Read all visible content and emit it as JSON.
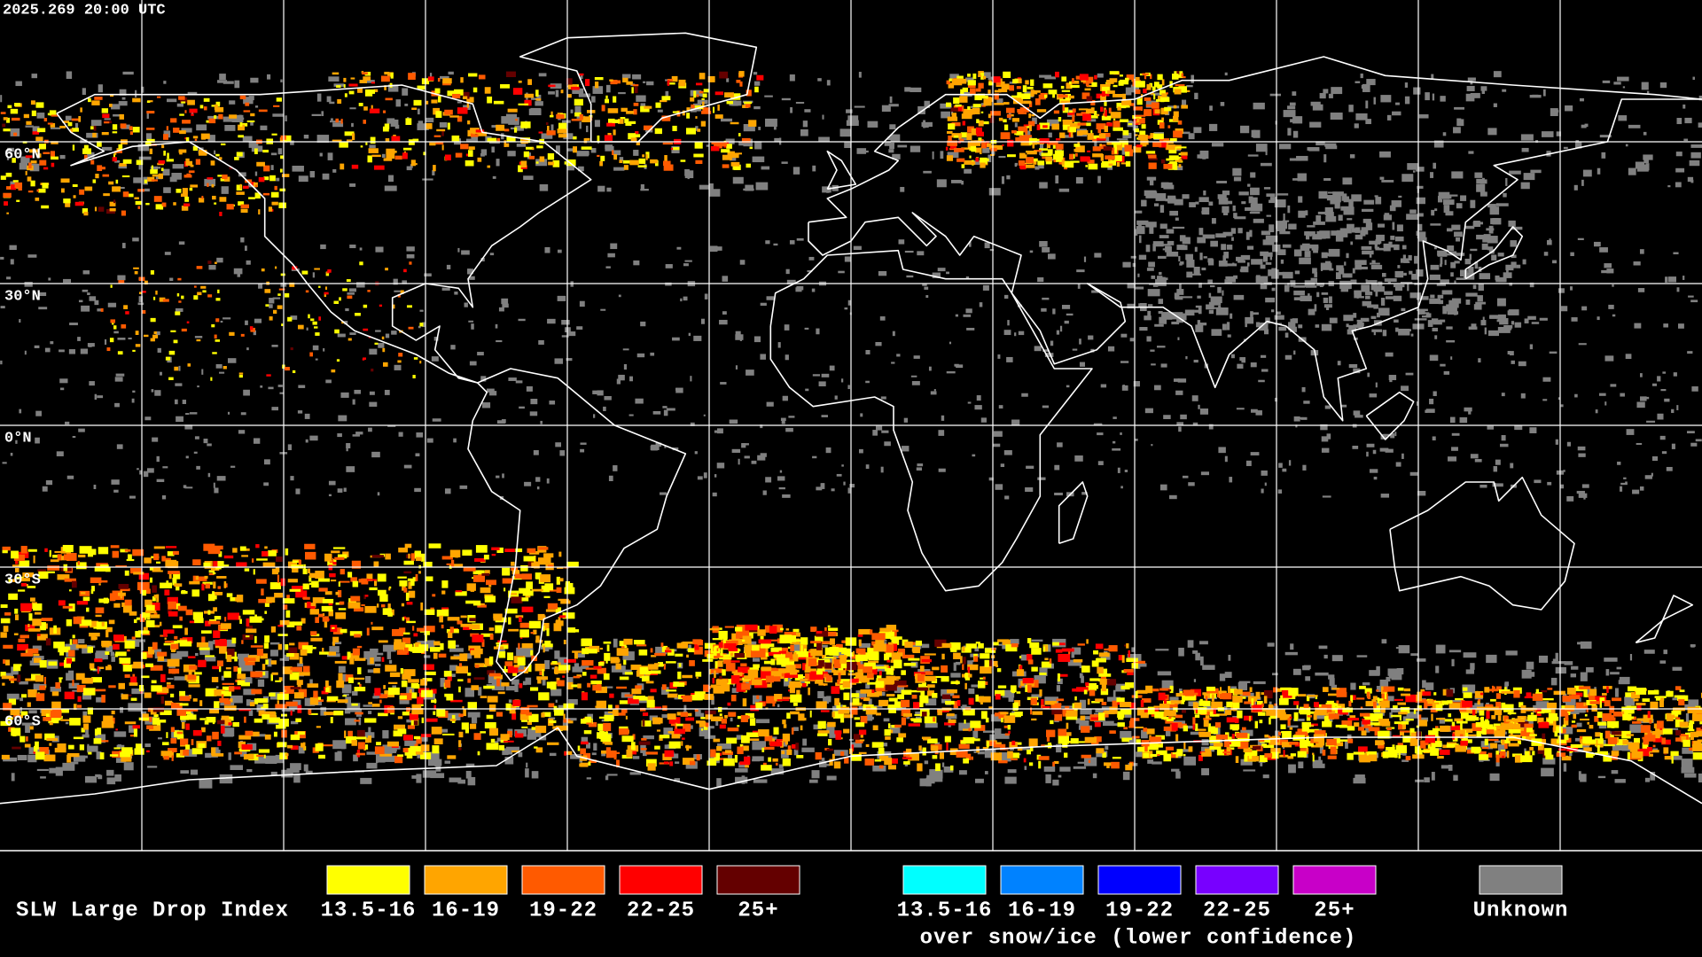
{
  "timestamp": "2025.269 20:00 UTC",
  "map": {
    "latitude_labels": [
      "60°N",
      "30°N",
      "0°N",
      "30°S",
      "60°S"
    ]
  },
  "legend": {
    "title": "SLW Large Drop Index",
    "items": [
      {
        "label": "13.5-16",
        "color": "#ffff00"
      },
      {
        "label": "16-19",
        "color": "#ffa500"
      },
      {
        "label": "19-22",
        "color": "#ff5a00"
      },
      {
        "label": "22-25",
        "color": "#ff0000"
      },
      {
        "label": "25+",
        "color": "#640000"
      }
    ],
    "snow_ice": {
      "items": [
        {
          "label": "13.5-16",
          "color": "#00ffff"
        },
        {
          "label": "16-19",
          "color": "#0082ff"
        },
        {
          "label": "19-22",
          "color": "#0000ff"
        },
        {
          "label": "22-25",
          "color": "#7800ff"
        },
        {
          "label": "25+",
          "color": "#c800c8"
        }
      ],
      "note": "over snow/ice (lower confidence)"
    },
    "unknown": {
      "label": "Unknown",
      "color": "#808080"
    }
  }
}
